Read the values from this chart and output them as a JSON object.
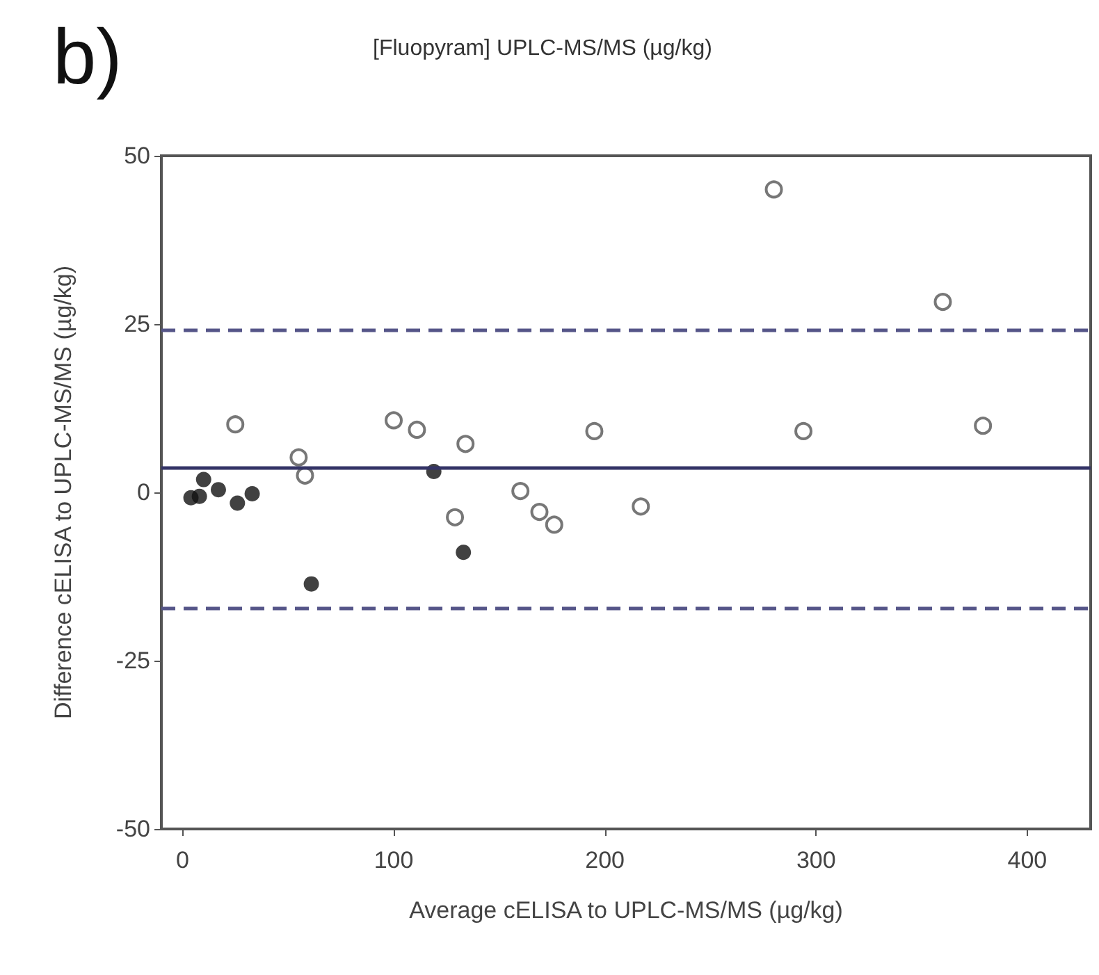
{
  "chart_data": {
    "type": "scatter",
    "title": "[Fluopyram] UPLC-MS/MS (µg/kg)",
    "annotations": [
      "b)"
    ],
    "xlabel": "Average cELISA to UPLC-MS/MS (µg/kg)",
    "ylabel": "Difference cELISA to UPLC-MS/MS (µg/kg)",
    "xlim": [
      -10,
      430
    ],
    "xticks": [
      0,
      100,
      200,
      300,
      400
    ],
    "ylim": [
      -50,
      50
    ],
    "yticks": [
      -50,
      -25,
      0,
      25,
      50
    ],
    "grid": false,
    "marker": "circle",
    "series": [
      {
        "color": "#555555",
        "x": [
          25,
          55,
          58,
          100,
          111,
          134,
          129,
          160,
          169,
          176,
          195,
          217,
          280,
          294,
          360,
          379
        ],
        "values": [
          10.1,
          5.2,
          2.5,
          10.7,
          9.3,
          7.2,
          -3.7,
          0.2,
          -2.9,
          -4.8,
          9.1,
          -2.1,
          45,
          9.1,
          28.3,
          9.9
        ]
      },
      {
        "color": "#111111",
        "x": [
          4,
          8,
          10,
          17,
          26,
          33,
          61,
          119,
          133
        ],
        "values": [
          -0.8,
          -0.6,
          1.9,
          0.4,
          -1.6,
          -0.2,
          -13.6,
          3.1,
          -8.9
        ]
      }
    ],
    "ref_lines": [
      {
        "axis": "y",
        "value": 24.2,
        "color": "#555588",
        "line_style": "dashed"
      },
      {
        "axis": "y",
        "value": 3.7,
        "color": "#333366",
        "line_style": "solid"
      },
      {
        "axis": "y",
        "value": -17.1,
        "color": "#555588",
        "line_style": "dashed"
      }
    ]
  }
}
